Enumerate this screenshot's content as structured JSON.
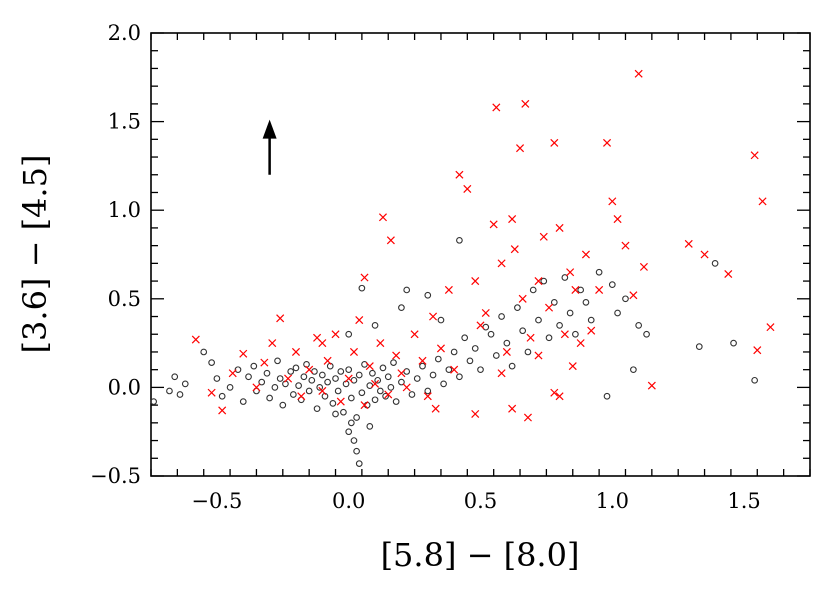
{
  "chart_data": {
    "type": "scatter",
    "title": "",
    "xlabel": "[5.8] − [8.0]",
    "ylabel": "[3.6] − [4.5]",
    "xlim": [
      -0.75,
      1.75
    ],
    "ylim": [
      -0.5,
      2.0
    ],
    "x_ticks": [
      -0.5,
      0.0,
      0.5,
      1.0,
      1.5
    ],
    "x_tick_labels": [
      "−0.5",
      "0.0",
      "0.5",
      "1.0",
      "1.5"
    ],
    "y_ticks": [
      -0.5,
      0.0,
      0.5,
      1.0,
      1.5,
      2.0
    ],
    "y_tick_labels": [
      "−0.5",
      "0.0",
      "0.5",
      "1.0",
      "1.5",
      "2.0"
    ],
    "grid": false,
    "legend": "none",
    "colors": {
      "circles": "#333333",
      "crosses": "#ff0000",
      "arrow": "#000000"
    },
    "arrow": {
      "x": -0.3,
      "y_start": 1.2,
      "y_end": 1.5
    },
    "series": [
      {
        "marker": "open-circle",
        "color": "#333333",
        "points": [
          [
            -0.74,
            -0.08
          ],
          [
            -0.68,
            -0.02
          ],
          [
            -0.66,
            0.06
          ],
          [
            -0.64,
            -0.04
          ],
          [
            -0.62,
            0.02
          ],
          [
            -0.55,
            0.2
          ],
          [
            -0.52,
            0.14
          ],
          [
            -0.5,
            0.05
          ],
          [
            -0.48,
            -0.05
          ],
          [
            -0.45,
            0.0
          ],
          [
            -0.42,
            0.1
          ],
          [
            -0.4,
            -0.08
          ],
          [
            -0.38,
            0.06
          ],
          [
            -0.36,
            0.12
          ],
          [
            -0.35,
            -0.02
          ],
          [
            -0.33,
            0.03
          ],
          [
            -0.31,
            0.08
          ],
          [
            -0.3,
            -0.06
          ],
          [
            -0.28,
            0.0
          ],
          [
            -0.27,
            0.15
          ],
          [
            -0.26,
            0.05
          ],
          [
            -0.25,
            -0.1
          ],
          [
            -0.24,
            0.02
          ],
          [
            -0.22,
            0.09
          ],
          [
            -0.21,
            -0.04
          ],
          [
            -0.2,
            0.11
          ],
          [
            -0.19,
            0.01
          ],
          [
            -0.18,
            -0.07
          ],
          [
            -0.17,
            0.06
          ],
          [
            -0.16,
            0.13
          ],
          [
            -0.15,
            -0.02
          ],
          [
            -0.14,
            0.04
          ],
          [
            -0.13,
            0.09
          ],
          [
            -0.12,
            -0.12
          ],
          [
            -0.11,
            0.0
          ],
          [
            -0.1,
            0.07
          ],
          [
            -0.09,
            -0.05
          ],
          [
            -0.08,
            0.03
          ],
          [
            -0.07,
            0.12
          ],
          [
            -0.06,
            -0.09
          ],
          [
            -0.05,
            0.05
          ],
          [
            -0.04,
            -0.02
          ],
          [
            -0.03,
            0.09
          ],
          [
            -0.02,
            -0.14
          ],
          [
            -0.01,
            0.02
          ],
          [
            0.0,
            0.1
          ],
          [
            0.01,
            -0.06
          ],
          [
            0.02,
            0.04
          ],
          [
            0.03,
            -0.17
          ],
          [
            0.04,
            0.07
          ],
          [
            0.05,
            -0.03
          ],
          [
            0.06,
            0.13
          ],
          [
            0.07,
            -0.1
          ],
          [
            0.08,
            0.01
          ],
          [
            0.09,
            0.08
          ],
          [
            0.1,
            -0.07
          ],
          [
            0.11,
            0.04
          ],
          [
            0.12,
            -0.02
          ],
          [
            0.13,
            0.11
          ],
          [
            0.14,
            -0.05
          ],
          [
            0.15,
            0.06
          ],
          [
            0.16,
            0.0
          ],
          [
            0.17,
            0.14
          ],
          [
            0.18,
            -0.08
          ],
          [
            0.2,
            0.03
          ],
          [
            0.22,
            0.09
          ],
          [
            0.24,
            -0.04
          ],
          [
            0.26,
            0.05
          ],
          [
            0.28,
            0.12
          ],
          [
            0.3,
            -0.02
          ],
          [
            0.32,
            0.07
          ],
          [
            0.34,
            0.16
          ],
          [
            0.36,
            0.02
          ],
          [
            0.38,
            0.1
          ],
          [
            0.4,
            0.2
          ],
          [
            0.42,
            0.06
          ],
          [
            0.44,
            0.28
          ],
          [
            0.46,
            0.15
          ],
          [
            0.48,
            0.22
          ],
          [
            0.5,
            0.1
          ],
          [
            0.52,
            0.34
          ],
          [
            0.54,
            0.3
          ],
          [
            0.56,
            0.18
          ],
          [
            0.58,
            0.4
          ],
          [
            0.6,
            0.25
          ],
          [
            0.62,
            0.12
          ],
          [
            0.64,
            0.45
          ],
          [
            0.66,
            0.32
          ],
          [
            0.68,
            0.2
          ],
          [
            0.7,
            0.55
          ],
          [
            0.72,
            0.38
          ],
          [
            0.74,
            0.6
          ],
          [
            0.76,
            0.28
          ],
          [
            0.78,
            0.48
          ],
          [
            0.8,
            0.35
          ],
          [
            0.82,
            0.62
          ],
          [
            0.84,
            0.42
          ],
          [
            0.86,
            0.3
          ],
          [
            0.88,
            0.55
          ],
          [
            0.9,
            0.48
          ],
          [
            0.92,
            0.38
          ],
          [
            0.95,
            0.65
          ],
          [
            0.98,
            -0.05
          ],
          [
            1.0,
            0.58
          ],
          [
            1.02,
            0.42
          ],
          [
            1.05,
            0.5
          ],
          [
            1.08,
            0.1
          ],
          [
            1.1,
            0.35
          ],
          [
            1.13,
            0.3
          ],
          [
            1.33,
            0.23
          ],
          [
            1.39,
            0.7
          ],
          [
            1.46,
            0.25
          ],
          [
            1.54,
            0.04
          ],
          [
            -0.0,
            -0.25
          ],
          [
            0.02,
            -0.3
          ],
          [
            0.03,
            -0.36
          ],
          [
            0.04,
            -0.43
          ],
          [
            0.01,
            -0.2
          ],
          [
            -0.05,
            -0.15
          ],
          [
            0.08,
            -0.22
          ],
          [
            0.42,
            0.83
          ],
          [
            0.05,
            0.56
          ],
          [
            0.0,
            0.3
          ],
          [
            0.1,
            0.35
          ],
          [
            0.2,
            0.45
          ],
          [
            0.3,
            0.52
          ],
          [
            0.22,
            0.55
          ],
          [
            0.35,
            0.38
          ]
        ]
      },
      {
        "marker": "cross",
        "color": "#ff0000",
        "points": [
          [
            -0.58,
            0.27
          ],
          [
            -0.52,
            -0.03
          ],
          [
            -0.48,
            -0.13
          ],
          [
            -0.44,
            0.08
          ],
          [
            -0.4,
            0.19
          ],
          [
            -0.35,
            0.0
          ],
          [
            -0.32,
            0.14
          ],
          [
            -0.29,
            0.25
          ],
          [
            -0.26,
            0.39
          ],
          [
            -0.23,
            0.05
          ],
          [
            -0.2,
            0.2
          ],
          [
            -0.18,
            -0.05
          ],
          [
            -0.15,
            0.1
          ],
          [
            -0.12,
            0.28
          ],
          [
            -0.1,
            -0.02
          ],
          [
            -0.08,
            0.15
          ],
          [
            -0.05,
            0.3
          ],
          [
            -0.03,
            -0.08
          ],
          [
            0.0,
            0.05
          ],
          [
            0.02,
            0.2
          ],
          [
            0.04,
            0.38
          ],
          [
            0.06,
            -0.1
          ],
          [
            0.08,
            0.12
          ],
          [
            0.1,
            0.02
          ],
          [
            0.12,
            0.25
          ],
          [
            0.15,
            -0.04
          ],
          [
            0.18,
            0.18
          ],
          [
            0.2,
            0.08
          ],
          [
            0.25,
            0.3
          ],
          [
            0.28,
            0.15
          ],
          [
            0.3,
            -0.05
          ],
          [
            0.32,
            0.4
          ],
          [
            0.35,
            0.22
          ],
          [
            0.38,
            0.55
          ],
          [
            0.4,
            0.1
          ],
          [
            0.42,
            1.2
          ],
          [
            0.45,
            1.12
          ],
          [
            0.48,
            0.6
          ],
          [
            0.5,
            0.35
          ],
          [
            0.52,
            0.42
          ],
          [
            0.55,
            0.92
          ],
          [
            0.56,
            1.58
          ],
          [
            0.58,
            0.7
          ],
          [
            0.6,
            0.2
          ],
          [
            0.62,
            0.95
          ],
          [
            0.63,
            0.78
          ],
          [
            0.65,
            1.35
          ],
          [
            0.66,
            0.5
          ],
          [
            0.67,
            1.6
          ],
          [
            0.69,
            0.28
          ],
          [
            0.72,
            0.6
          ],
          [
            0.74,
            0.85
          ],
          [
            0.76,
            0.45
          ],
          [
            0.78,
            1.38
          ],
          [
            0.8,
            0.9
          ],
          [
            0.82,
            0.3
          ],
          [
            0.84,
            0.65
          ],
          [
            0.86,
            0.55
          ],
          [
            0.88,
            0.25
          ],
          [
            0.9,
            0.75
          ],
          [
            0.92,
            0.32
          ],
          [
            0.95,
            0.55
          ],
          [
            0.98,
            1.38
          ],
          [
            1.0,
            1.05
          ],
          [
            1.02,
            0.95
          ],
          [
            1.05,
            0.8
          ],
          [
            1.08,
            0.52
          ],
          [
            1.1,
            1.77
          ],
          [
            1.12,
            0.68
          ],
          [
            1.15,
            0.01
          ],
          [
            1.29,
            0.81
          ],
          [
            1.35,
            0.75
          ],
          [
            1.44,
            0.64
          ],
          [
            1.54,
            1.31
          ],
          [
            1.57,
            1.05
          ],
          [
            1.55,
            0.21
          ],
          [
            1.6,
            0.34
          ],
          [
            0.13,
            0.96
          ],
          [
            0.16,
            0.83
          ],
          [
            -0.1,
            0.25
          ],
          [
            0.06,
            0.62
          ],
          [
            0.22,
            0.0
          ],
          [
            0.33,
            -0.12
          ],
          [
            0.48,
            -0.15
          ],
          [
            0.62,
            -0.12
          ],
          [
            0.68,
            -0.17
          ],
          [
            0.78,
            -0.03
          ],
          [
            0.58,
            0.08
          ],
          [
            0.72,
            0.18
          ],
          [
            0.8,
            -0.05
          ],
          [
            0.85,
            0.12
          ]
        ]
      }
    ]
  }
}
